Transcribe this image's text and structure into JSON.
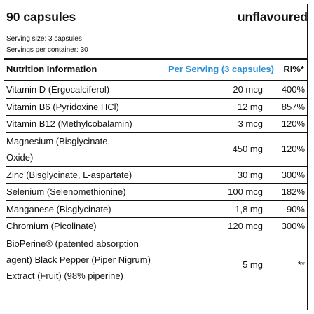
{
  "header": {
    "pack_size": "90 capsules",
    "flavour": "unflavoured",
    "serving_size": "Serving size: 3 capsules",
    "servings_per_container": "Servings per container: 30"
  },
  "table": {
    "columns": [
      "Nutrition Information",
      "Per Serving (3 capsules)",
      "RI%*"
    ],
    "accent_color": "#2a8fd6",
    "rows": [
      {
        "name": "Vitamin D (Ergocalciferol)",
        "amount": "20 mcg",
        "ri": "400%"
      },
      {
        "name": "Vitamin B6 (Pyridoxine HCl)",
        "amount": "12 mg",
        "ri": "857%"
      },
      {
        "name": "Vitamin B12 (Methylcobalamin)",
        "amount": "3 mcg",
        "ri": "120%"
      },
      {
        "name": "Magnesium (Bisglycinate, Oxide)",
        "amount": "450 mg",
        "ri": "120%"
      },
      {
        "name": "Zinc (Bisglycinate, L-aspartate)",
        "amount": "30 mg",
        "ri": "300%"
      },
      {
        "name": "Selenium (Selenomethionine)",
        "amount": "100 mcg",
        "ri": "182%"
      },
      {
        "name": "Manganese (Bisglycinate)",
        "amount": "1,8 mg",
        "ri": "90%"
      },
      {
        "name": "Chromium (Picolinate)",
        "amount": "120 mcg",
        "ri": "300%"
      },
      {
        "name": "BioPerine® (patented absorption agent) Black Pepper (Piper Nigrum) Extract (Fruit) (98% piperine)",
        "amount": "5 mg",
        "ri": "**"
      }
    ]
  }
}
